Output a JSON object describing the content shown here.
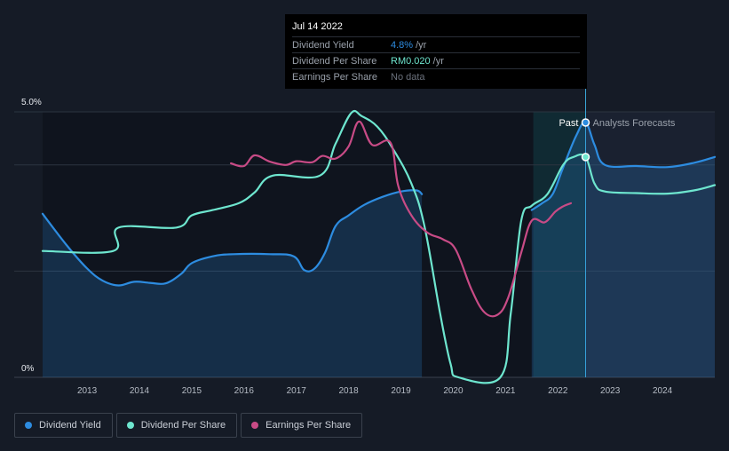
{
  "tooltip": {
    "date": "Jul 14 2022",
    "rows": [
      {
        "label": "Dividend Yield",
        "value": "4.8%",
        "unit": "/yr",
        "color": "#2d8ce0"
      },
      {
        "label": "Dividend Per Share",
        "value": "RM0.020",
        "unit": "/yr",
        "color": "#6ee6cf"
      },
      {
        "label": "Earnings Per Share",
        "value": "No data",
        "unit": "",
        "color": "#6b717c"
      }
    ]
  },
  "legend": [
    {
      "label": "Dividend Yield",
      "color": "#2d8ce0"
    },
    {
      "label": "Dividend Per Share",
      "color": "#6ee6cf"
    },
    {
      "label": "Earnings Per Share",
      "color": "#c84b86"
    }
  ],
  "chart_data": {
    "type": "line",
    "title": "",
    "xlabel": "",
    "ylabel": "",
    "xlim": [
      2012.15,
      2025.0
    ],
    "ylim": [
      0,
      5.0
    ],
    "y_tick_labels": [
      "5.0%",
      "0%"
    ],
    "x_tick_labels": [
      "2013",
      "2014",
      "2015",
      "2016",
      "2017",
      "2018",
      "2019",
      "2020",
      "2021",
      "2022",
      "2023",
      "2024"
    ],
    "x_ticks": [
      2013,
      2014,
      2015,
      2016,
      2017,
      2018,
      2019,
      2020,
      2021,
      2022,
      2023,
      2024
    ],
    "past_label": "Past",
    "forecast_label": "Analysts Forecasts",
    "divider_x": 2022.53,
    "forecast_band_start": 2021.53,
    "series": [
      {
        "name": "Dividend Yield",
        "color": "#2d8ce0",
        "fill": true,
        "points": [
          [
            2012.15,
            3.08
          ],
          [
            2012.6,
            2.5
          ],
          [
            2013.0,
            2.05
          ],
          [
            2013.3,
            1.82
          ],
          [
            2013.6,
            1.73
          ],
          [
            2013.9,
            1.8
          ],
          [
            2014.2,
            1.78
          ],
          [
            2014.5,
            1.77
          ],
          [
            2014.8,
            1.95
          ],
          [
            2015.0,
            2.15
          ],
          [
            2015.4,
            2.28
          ],
          [
            2015.8,
            2.32
          ],
          [
            2016.5,
            2.32
          ],
          [
            2016.95,
            2.28
          ],
          [
            2017.15,
            2.02
          ],
          [
            2017.35,
            2.05
          ],
          [
            2017.55,
            2.35
          ],
          [
            2017.75,
            2.85
          ],
          [
            2018.0,
            3.05
          ],
          [
            2018.3,
            3.25
          ],
          [
            2018.65,
            3.4
          ],
          [
            2019.0,
            3.5
          ],
          [
            2019.3,
            3.52
          ],
          [
            2019.4,
            3.45
          ]
        ]
      },
      {
        "name": "Dividend Yield Forecast",
        "color": "#2d8ce0",
        "fill": true,
        "points": [
          [
            2021.5,
            3.15
          ],
          [
            2021.7,
            3.28
          ],
          [
            2021.9,
            3.45
          ],
          [
            2022.1,
            3.95
          ],
          [
            2022.35,
            4.55
          ],
          [
            2022.53,
            4.8
          ],
          [
            2022.7,
            4.38
          ],
          [
            2022.9,
            4.0
          ],
          [
            2023.5,
            3.98
          ],
          [
            2024.1,
            3.96
          ],
          [
            2024.6,
            4.04
          ],
          [
            2025.0,
            4.15
          ]
        ]
      },
      {
        "name": "Dividend Per Share",
        "color": "#6ee6cf",
        "fill": false,
        "points": [
          [
            2012.15,
            2.38
          ],
          [
            2013.5,
            2.38
          ],
          [
            2013.6,
            2.82
          ],
          [
            2014.7,
            2.82
          ],
          [
            2015.0,
            3.05
          ],
          [
            2015.4,
            3.15
          ],
          [
            2015.9,
            3.28
          ],
          [
            2016.2,
            3.48
          ],
          [
            2016.55,
            3.8
          ],
          [
            2017.45,
            3.8
          ],
          [
            2017.75,
            4.4
          ],
          [
            2018.05,
            4.98
          ],
          [
            2018.25,
            4.92
          ],
          [
            2018.55,
            4.72
          ],
          [
            2018.85,
            4.3
          ],
          [
            2019.2,
            3.65
          ],
          [
            2019.45,
            2.85
          ],
          [
            2019.75,
            1.2
          ],
          [
            2019.95,
            0.25
          ],
          [
            2020.1,
            0.0
          ],
          [
            2020.9,
            0.0
          ],
          [
            2021.1,
            1.2
          ],
          [
            2021.3,
            2.95
          ],
          [
            2021.5,
            3.23
          ],
          [
            2021.8,
            3.45
          ],
          [
            2022.1,
            4.0
          ],
          [
            2022.3,
            4.15
          ],
          [
            2022.53,
            4.15
          ],
          [
            2022.7,
            3.65
          ],
          [
            2022.9,
            3.5
          ],
          [
            2023.5,
            3.47
          ],
          [
            2024.1,
            3.46
          ],
          [
            2024.6,
            3.52
          ],
          [
            2025.0,
            3.62
          ]
        ]
      },
      {
        "name": "Earnings Per Share",
        "color": "#c84b86",
        "fill": false,
        "points": [
          [
            2015.75,
            4.03
          ],
          [
            2016.0,
            3.98
          ],
          [
            2016.2,
            4.18
          ],
          [
            2016.5,
            4.06
          ],
          [
            2016.8,
            4.0
          ],
          [
            2017.0,
            4.07
          ],
          [
            2017.3,
            4.05
          ],
          [
            2017.5,
            4.17
          ],
          [
            2017.75,
            4.12
          ],
          [
            2018.0,
            4.35
          ],
          [
            2018.2,
            4.82
          ],
          [
            2018.45,
            4.38
          ],
          [
            2018.8,
            4.42
          ],
          [
            2018.95,
            3.6
          ],
          [
            2019.2,
            3.05
          ],
          [
            2019.5,
            2.73
          ],
          [
            2019.8,
            2.6
          ],
          [
            2020.05,
            2.4
          ],
          [
            2020.35,
            1.65
          ],
          [
            2020.6,
            1.22
          ],
          [
            2020.85,
            1.18
          ],
          [
            2021.05,
            1.5
          ],
          [
            2021.3,
            2.35
          ],
          [
            2021.5,
            2.95
          ],
          [
            2021.75,
            2.92
          ],
          [
            2021.95,
            3.12
          ],
          [
            2022.1,
            3.22
          ],
          [
            2022.25,
            3.28
          ]
        ]
      }
    ],
    "markers": [
      {
        "series": "Dividend Yield",
        "x": 2022.53,
        "y": 4.8
      },
      {
        "series": "Dividend Per Share",
        "x": 2022.53,
        "y": 4.15
      }
    ]
  }
}
